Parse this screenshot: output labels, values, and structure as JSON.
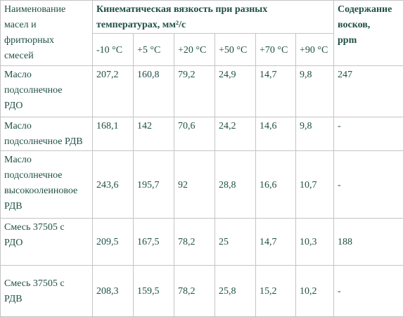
{
  "header": {
    "name_col": "Наименование\nмасел и\nфритюрных\nсмесей",
    "viscosity_group": "Кинематическая вязкость при разных\nтемпературах, мм²/с",
    "wax_col": "Содержание\nвосков,\nppm",
    "temperatures": [
      "-10 °C",
      "+5 °C",
      "+20 °C",
      "+50 °C",
      "+70 °C",
      "+90 °C"
    ]
  },
  "rows": [
    {
      "name": "Масло\nподсолнечное\nРДО",
      "values": [
        "207,2",
        "160,8",
        "79,2",
        "24,9",
        "14,7",
        "9,8"
      ],
      "wax": "247"
    },
    {
      "name": "Масло\nподсолнечное РДВ",
      "values": [
        "168,1",
        "142",
        "70,6",
        "24,2",
        "14,6",
        "9,8"
      ],
      "wax": "-"
    },
    {
      "name": "Масло\nподсолнечное\nвысокоолеиновое\nРДВ",
      "values": [
        "243,6",
        "195,7",
        "92",
        "28,8",
        "16,6",
        "10,7"
      ],
      "wax": "-"
    },
    {
      "name": "Смесь 37505 с\nРДО",
      "values": [
        "209,5",
        "167,5",
        "78,2",
        "25",
        "14,7",
        "10,3"
      ],
      "wax": "188"
    },
    {
      "name": "Смесь 37505 с\nРДВ",
      "values": [
        "208,3",
        "159,5",
        "78,2",
        "25,8",
        "15,2",
        "10,2"
      ],
      "wax": "-"
    }
  ]
}
